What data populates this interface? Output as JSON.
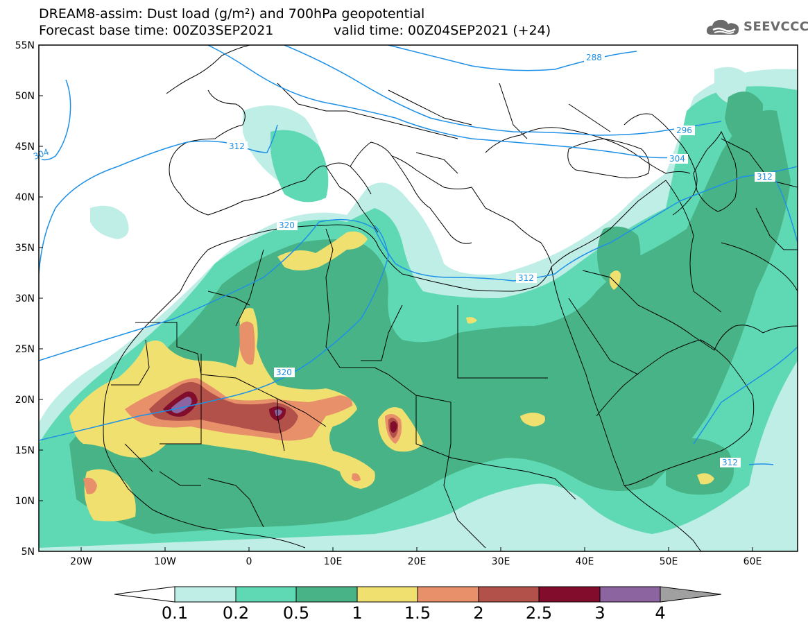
{
  "title": {
    "line1": "DREAM8-assim: Dust load (g/m²) and 700hPa geopotential",
    "line2_left": "Forecast base time: 00Z03SEP2021",
    "line2_right": "valid time: 00Z04SEP2021 (+24)"
  },
  "logo": {
    "text": "SEEVCCC",
    "icon": "cloud-icon"
  },
  "map": {
    "lat_labels": [
      "55N",
      "50N",
      "45N",
      "40N",
      "35N",
      "30N",
      "25N",
      "20N",
      "15N",
      "10N",
      "5N"
    ],
    "lon_labels": [
      "20W",
      "10W",
      "0",
      "10E",
      "20E",
      "30E",
      "40E",
      "50E",
      "60E"
    ],
    "contour_labels": [
      "288",
      "296",
      "304",
      "312",
      "312",
      "312",
      "312",
      "320",
      "320",
      "304"
    ]
  },
  "colorbar": {
    "labels": [
      "0.1",
      "0.2",
      "0.5",
      "1",
      "1.5",
      "2",
      "2.5",
      "3",
      "4"
    ],
    "colors": [
      "#bfeee6",
      "#5fd9b3",
      "#48b386",
      "#f0e070",
      "#e8906a",
      "#b2504a",
      "#820c2c",
      "#8c64a0",
      "#a0a0a0"
    ]
  },
  "colors": {
    "geopotential_line": "#1e90e6",
    "coastline": "#000000"
  }
}
